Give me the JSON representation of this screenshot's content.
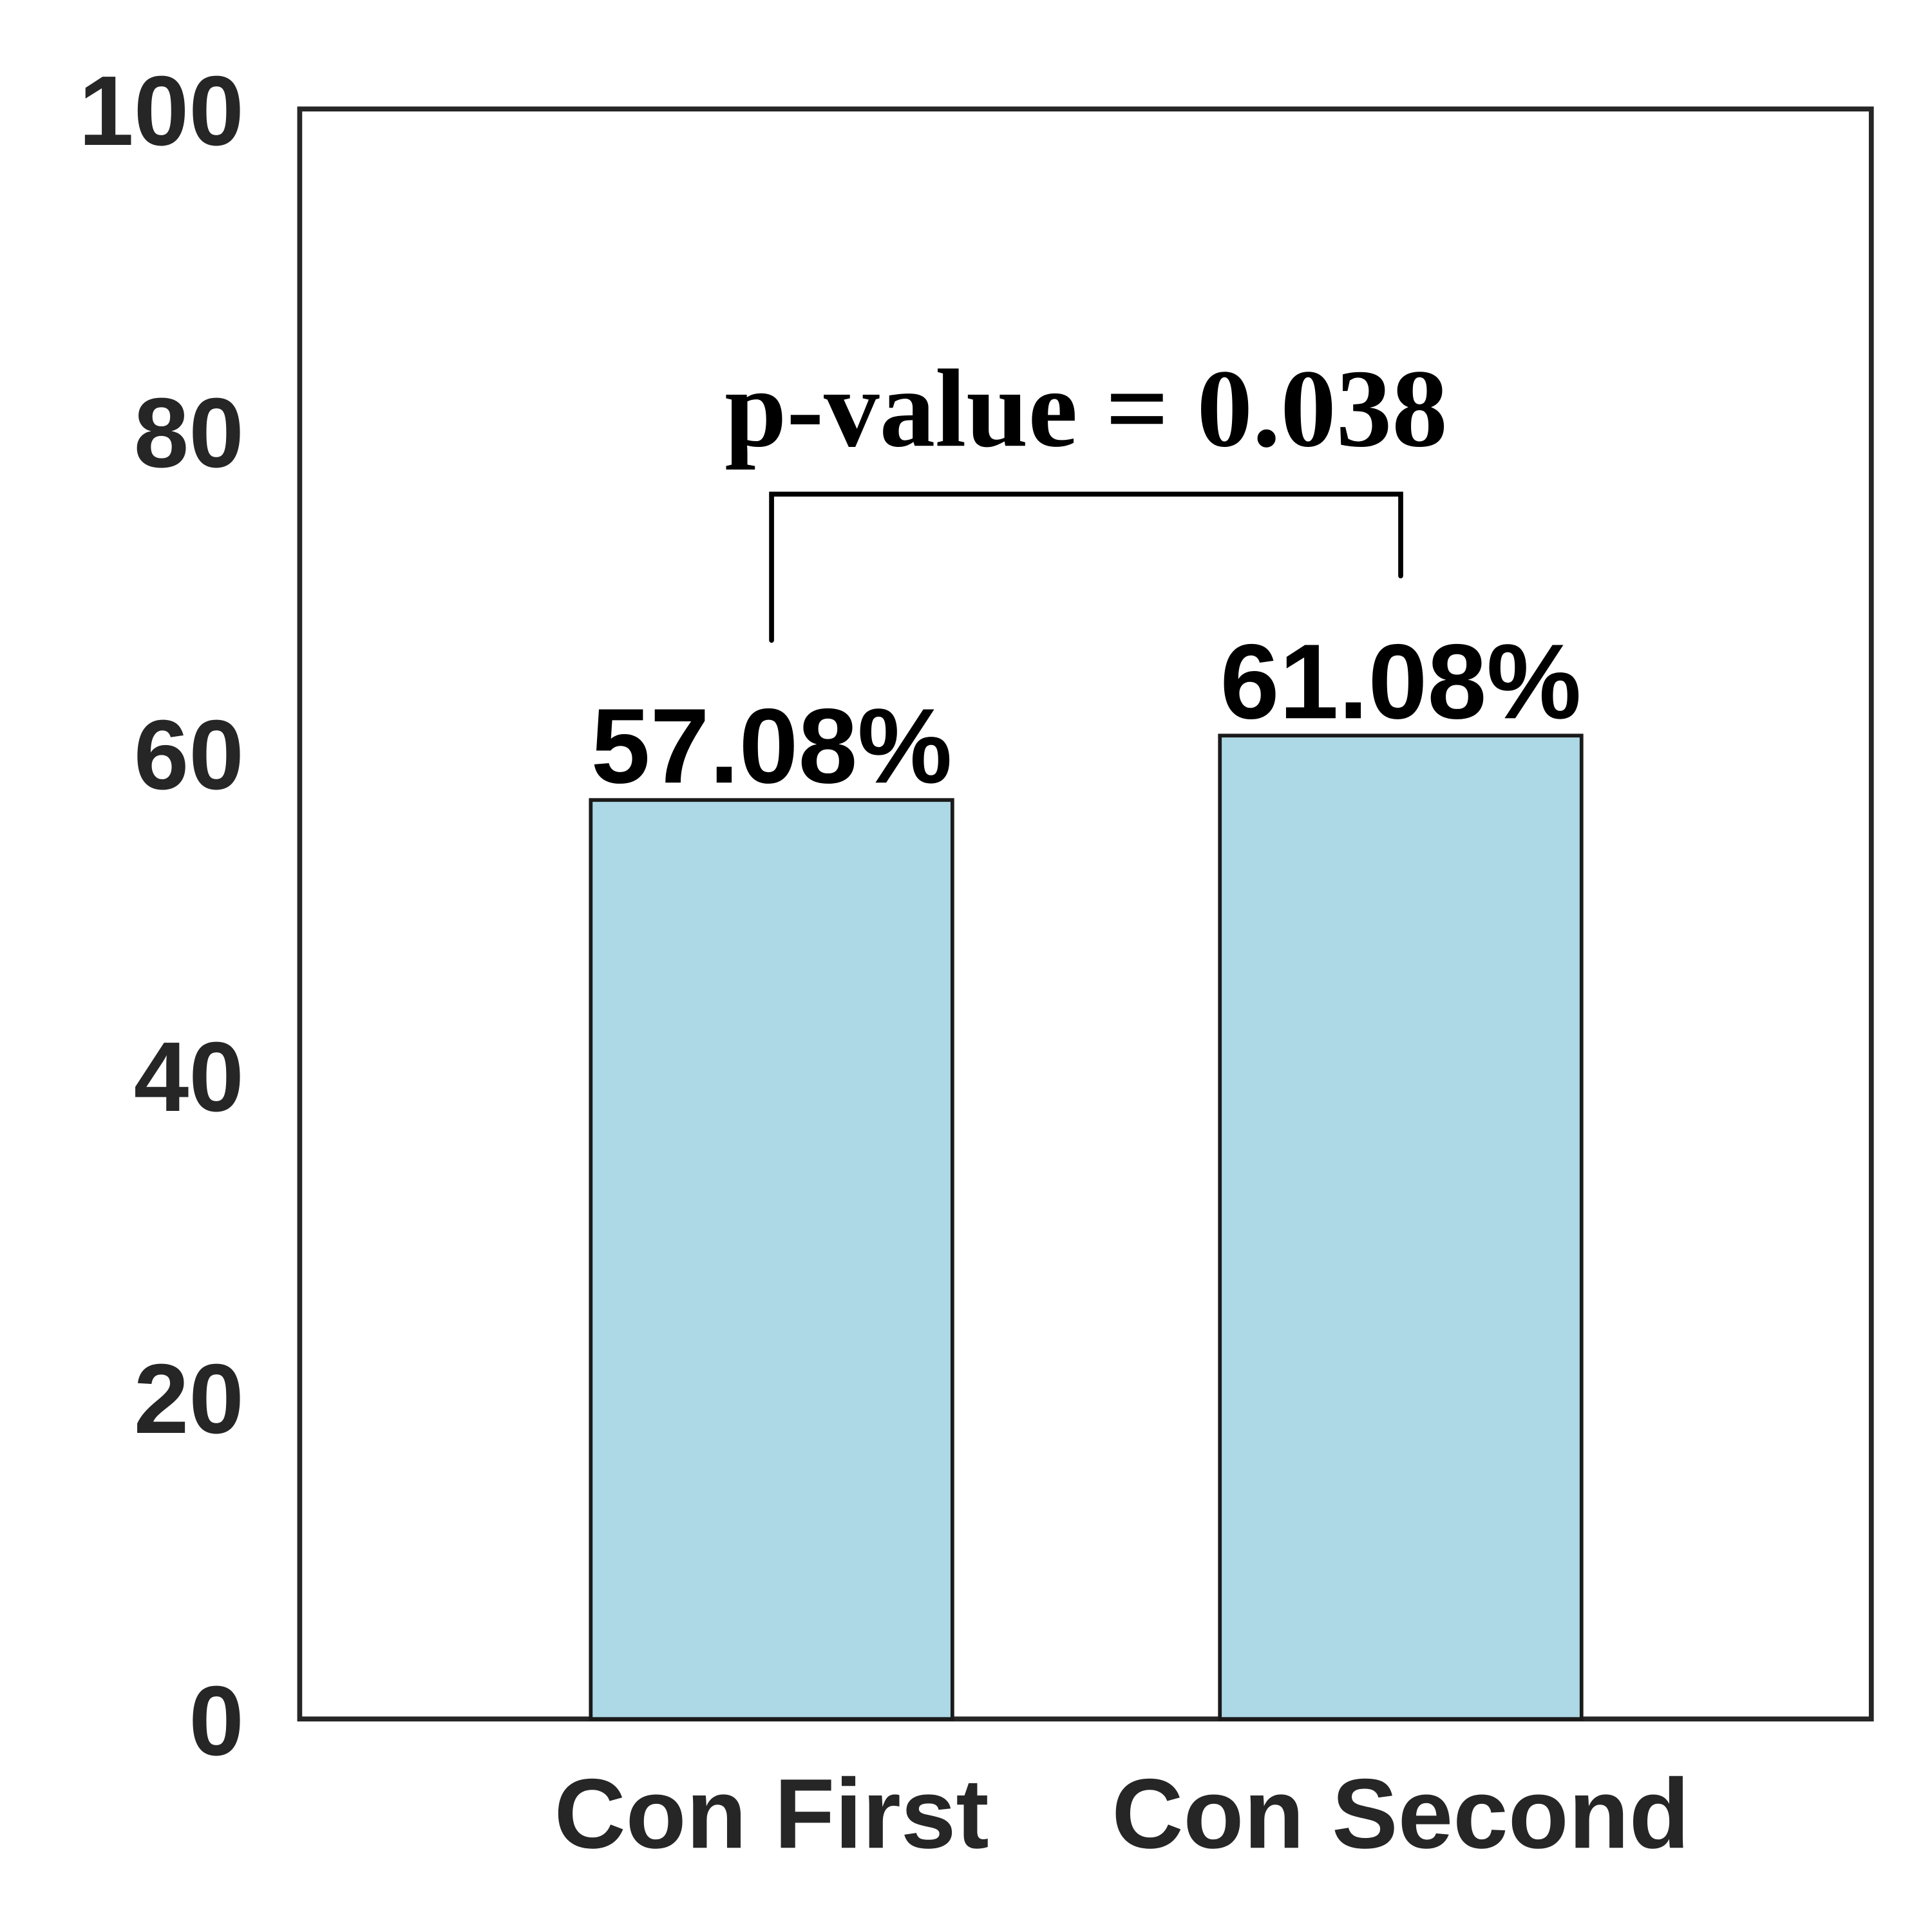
{
  "chart_data": {
    "type": "bar",
    "categories": [
      "Con First",
      "Con Second"
    ],
    "values": [
      57.08,
      61.08
    ],
    "value_labels": [
      "57.08%",
      "61.08%"
    ],
    "color": "#add8e6",
    "ylim": [
      0,
      100
    ],
    "yticks": [
      0,
      20,
      40,
      60,
      80,
      100
    ],
    "annotation": "p-value = 0.038"
  }
}
